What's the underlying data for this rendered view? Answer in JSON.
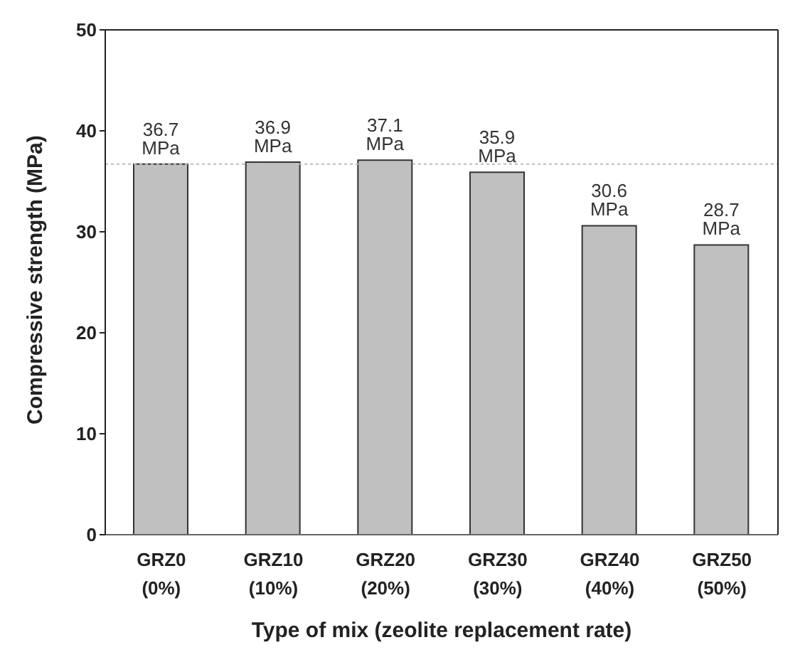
{
  "chart_data": {
    "type": "bar",
    "xlabel": "Type of  mix (zeolite replacement rate)",
    "ylabel": "Compressive strength (MPa)",
    "categories": [
      "GRZ0 (0%)",
      "GRZ10 (10%)",
      "GRZ20 (20%)",
      "GRZ30 (30%)",
      "GRZ40 (40%)",
      "GRZ50 (50%)"
    ],
    "values": [
      36.7,
      36.9,
      37.1,
      35.9,
      30.6,
      28.7
    ],
    "value_labels": [
      "36.7 MPa",
      "36.9 MPa",
      "37.1 MPa",
      "35.9 MPa",
      "30.6 MPa",
      "28.7 MPa"
    ],
    "color": "#c0c0c0",
    "ylim": [
      0,
      50
    ],
    "yticks": [
      0,
      10,
      20,
      30,
      40,
      50
    ],
    "grid": false,
    "legend": false,
    "ref_lines": [
      {
        "axis": "y",
        "value": 36.7,
        "color": "#bbbbbb",
        "line_style": "dotted"
      }
    ]
  }
}
